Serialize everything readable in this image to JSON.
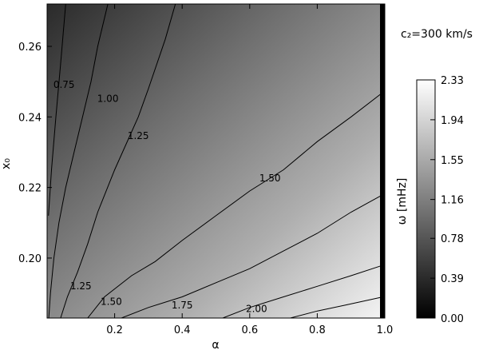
{
  "chart_data": {
    "type": "heatmap",
    "title": "",
    "annotation": "c₂=300 km/s",
    "xlabel": "α",
    "ylabel": "x₀",
    "xlim": [
      0.0,
      1.0
    ],
    "ylim": [
      0.183,
      0.272
    ],
    "x_ticks": [
      "0.2",
      "0.4",
      "0.6",
      "0.8",
      "1.0"
    ],
    "y_ticks": [
      "0.20",
      "0.22",
      "0.24",
      "0.26"
    ],
    "x_tick_values": [
      0.2,
      0.4,
      0.6,
      0.8,
      1.0
    ],
    "y_tick_values": [
      0.2,
      0.22,
      0.24,
      0.26
    ],
    "colorbar": {
      "label": "ω [mHz]",
      "range": [
        0.0,
        2.33
      ],
      "ticks": [
        "2.33",
        "1.94",
        "1.55",
        "1.16",
        "0.78",
        "0.39",
        "0.00"
      ],
      "tick_values": [
        2.33,
        1.94,
        1.55,
        1.16,
        0.78,
        0.39,
        0.0
      ],
      "colormap": "grayscale (black=0, white=max)"
    },
    "contours": [
      {
        "level": "0.75",
        "points": [
          [
            0.055,
            0.272
          ],
          [
            0.04,
            0.255
          ],
          [
            0.026,
            0.24
          ],
          [
            0.013,
            0.225
          ],
          [
            0.004,
            0.212
          ]
        ]
      },
      {
        "level": "1.00",
        "points": [
          [
            0.18,
            0.272
          ],
          [
            0.15,
            0.26
          ],
          [
            0.13,
            0.25
          ],
          [
            0.1,
            0.238
          ],
          [
            0.08,
            0.23
          ],
          [
            0.055,
            0.22
          ],
          [
            0.035,
            0.21
          ],
          [
            0.02,
            0.2
          ],
          [
            0.01,
            0.19
          ],
          [
            0.005,
            0.183
          ]
        ]
      },
      {
        "level": "1.25",
        "points": [
          [
            0.38,
            0.272
          ],
          [
            0.35,
            0.262
          ],
          [
            0.3,
            0.248
          ],
          [
            0.27,
            0.24
          ],
          [
            0.2,
            0.225
          ],
          [
            0.15,
            0.213
          ],
          [
            0.12,
            0.204
          ],
          [
            0.09,
            0.196
          ],
          [
            0.06,
            0.189
          ],
          [
            0.04,
            0.183
          ]
        ]
      },
      {
        "level": "1.50",
        "points": [
          [
            0.995,
            0.247
          ],
          [
            0.9,
            0.24
          ],
          [
            0.8,
            0.233
          ],
          [
            0.7,
            0.225
          ],
          [
            0.6,
            0.219
          ],
          [
            0.5,
            0.212
          ],
          [
            0.4,
            0.205
          ],
          [
            0.32,
            0.199
          ],
          [
            0.25,
            0.195
          ],
          [
            0.17,
            0.189
          ],
          [
            0.12,
            0.183
          ]
        ]
      },
      {
        "level": "1.75",
        "points": [
          [
            0.995,
            0.218
          ],
          [
            0.9,
            0.213
          ],
          [
            0.8,
            0.207
          ],
          [
            0.7,
            0.202
          ],
          [
            0.6,
            0.197
          ],
          [
            0.5,
            0.193
          ],
          [
            0.4,
            0.189
          ],
          [
            0.3,
            0.186
          ],
          [
            0.22,
            0.183
          ]
        ]
      },
      {
        "level": "2.00",
        "points": [
          [
            0.995,
            0.198
          ],
          [
            0.9,
            0.195
          ],
          [
            0.8,
            0.192
          ],
          [
            0.7,
            0.189
          ],
          [
            0.6,
            0.186
          ],
          [
            0.52,
            0.183
          ]
        ]
      },
      {
        "level": "2.25",
        "points": [
          [
            0.995,
            0.189
          ],
          [
            0.9,
            0.187
          ],
          [
            0.8,
            0.185
          ],
          [
            0.72,
            0.183
          ]
        ]
      }
    ],
    "contour_labels": [
      {
        "text": "0.75",
        "x": 0.05,
        "y": 0.249
      },
      {
        "text": "1.00",
        "x": 0.18,
        "y": 0.245
      },
      {
        "text": "1.25",
        "x": 0.27,
        "y": 0.2345
      },
      {
        "text": "1.50",
        "x": 0.66,
        "y": 0.2225
      },
      {
        "text": "1.25",
        "x": 0.1,
        "y": 0.192
      },
      {
        "text": "1.50",
        "x": 0.19,
        "y": 0.1875
      },
      {
        "text": "1.75",
        "x": 0.4,
        "y": 0.1865
      },
      {
        "text": "2.00",
        "x": 0.62,
        "y": 0.1855
      }
    ]
  }
}
